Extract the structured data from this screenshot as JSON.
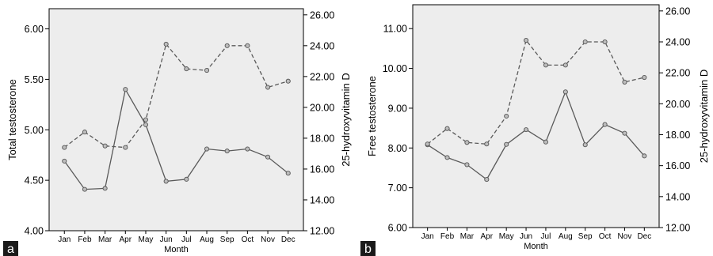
{
  "chart_data": [
    {
      "type": "line",
      "panel_label": "a",
      "xlabel": "Month",
      "ylabel": "Total testosterone",
      "y2label": "25-hydroxyvitamin D",
      "categories": [
        "Jan",
        "Feb",
        "Mar",
        "Apr",
        "May",
        "Jun",
        "Jul",
        "Aug",
        "Sep",
        "Oct",
        "Nov",
        "Dec"
      ],
      "ylim": [
        4.0,
        6.2
      ],
      "y2lim": [
        12.0,
        26.4
      ],
      "yticks": [
        "4.00",
        "4.50",
        "5.00",
        "5.50",
        "6.00"
      ],
      "y2ticks": [
        "12.00",
        "14.00",
        "16.00",
        "18.00",
        "20.00",
        "22.00",
        "24.00",
        "26.00"
      ],
      "series": [
        {
          "axis": "left",
          "style": "solid",
          "values": [
            4.69,
            4.41,
            4.42,
            5.4,
            5.05,
            4.49,
            4.51,
            4.81,
            4.79,
            4.81,
            4.73,
            4.57
          ]
        },
        {
          "axis": "right",
          "style": "dashed",
          "values": [
            17.4,
            18.4,
            17.5,
            17.4,
            19.2,
            24.1,
            22.5,
            22.4,
            24.0,
            24.0,
            21.3,
            21.7
          ]
        }
      ],
      "grid": false,
      "background": "#ededed"
    },
    {
      "type": "line",
      "panel_label": "b",
      "xlabel": "Month",
      "ylabel": "Free testosterone",
      "y2label": "25-hydroxyvitamin D",
      "categories": [
        "Jan",
        "Feb",
        "Mar",
        "Apr",
        "May",
        "Jun",
        "Jul",
        "Aug",
        "Sep",
        "Oct",
        "Nov",
        "Dec"
      ],
      "ylim": [
        6.0,
        11.6
      ],
      "y2lim": [
        12.0,
        26.4
      ],
      "yticks": [
        "6.00",
        "7.00",
        "8.00",
        "9.00",
        "10.00",
        "11.00"
      ],
      "y2ticks": [
        "12.00",
        "14.00",
        "16.00",
        "18.00",
        "20.00",
        "22.00",
        "24.00",
        "26.00"
      ],
      "series": [
        {
          "axis": "left",
          "style": "solid",
          "values": [
            8.08,
            7.76,
            7.58,
            7.21,
            8.09,
            8.46,
            8.15,
            9.41,
            8.08,
            8.59,
            8.37,
            7.8
          ]
        },
        {
          "axis": "right",
          "style": "dashed",
          "values": [
            17.4,
            18.4,
            17.5,
            17.4,
            19.2,
            24.1,
            22.5,
            22.5,
            24.0,
            24.0,
            21.4,
            21.7
          ]
        }
      ],
      "grid": false,
      "background": "#ededed"
    }
  ]
}
